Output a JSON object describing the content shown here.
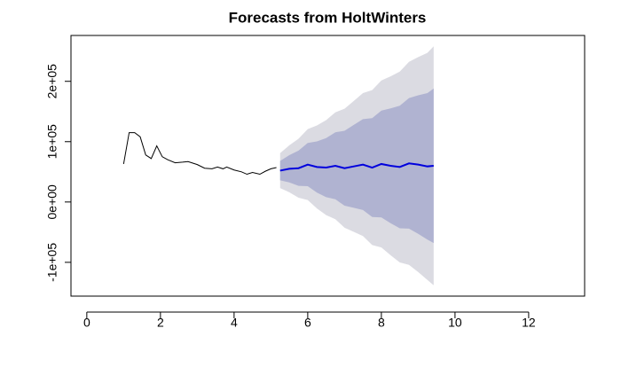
{
  "chart_data": {
    "type": "line",
    "title": "Forecasts from HoltWinters",
    "xlim": [
      -0.43,
      13.52
    ],
    "ylim": [
      -156000,
      276000
    ],
    "xticks": [
      0,
      2,
      4,
      6,
      8,
      10,
      12
    ],
    "yticks": [
      {
        "value": -100000,
        "label": "-1e+05"
      },
      {
        "value": 0,
        "label": "0e+00"
      },
      {
        "value": 100000,
        "label": "1e+05"
      },
      {
        "value": 200000,
        "label": "2e+05"
      }
    ],
    "series": [
      {
        "color": "#000000",
        "x": [
          1,
          1.15,
          1.3,
          1.45,
          1.6,
          1.75,
          1.9,
          2.05,
          2.2,
          2.4,
          2.6,
          2.75,
          3,
          3.2,
          3.4,
          3.55,
          3.7,
          3.8,
          4,
          4.2,
          4.35,
          4.5,
          4.7,
          4.85,
          5,
          5.15
        ],
        "values": [
          63000,
          115000,
          115000,
          108000,
          78000,
          72000,
          93000,
          75000,
          70000,
          65000,
          66000,
          67000,
          62000,
          56000,
          55000,
          58000,
          55000,
          58000,
          53000,
          50000,
          46000,
          49000,
          46000,
          51000,
          55000,
          57000
        ]
      },
      {
        "color": "#0000dd",
        "x": [
          5.25,
          5.5,
          5.75,
          6,
          6.25,
          6.5,
          6.75,
          7,
          7.25,
          7.5,
          7.75,
          8,
          8.25,
          8.5,
          8.75,
          9,
          9.25,
          9.42
        ],
        "values": [
          52000,
          55000,
          56000,
          62000,
          58000,
          57000,
          60000,
          56000,
          59000,
          62000,
          57000,
          63000,
          60000,
          58000,
          64000,
          62000,
          59000,
          60000
        ]
      }
    ],
    "bands": [
      {
        "color": "#dbdbe2",
        "lower": [
          23000,
          16100,
          7100,
          3200,
          -10800,
          -21700,
          -28600,
          -42600,
          -49500,
          -56500,
          -71400,
          -75400,
          -88300,
          -100200,
          -104200,
          -116100,
          -129100,
          -138000
        ],
        "upper": [
          81000,
          93900,
          104900,
          120800,
          126800,
          135700,
          148600,
          154600,
          167500,
          180500,
          185400,
          201400,
          208300,
          216200,
          232200,
          240100,
          247100,
          258000
        ]
      },
      {
        "color": "#b0b3d1",
        "lower": [
          36000,
          32400,
          26800,
          26200,
          15600,
          8100,
          4500,
          -6100,
          -9700,
          -13300,
          -24900,
          -25500,
          -35100,
          -43600,
          -44200,
          -52800,
          -62400,
          -68000
        ],
        "upper": [
          68000,
          77600,
          85200,
          97800,
          100400,
          105900,
          115500,
          118100,
          127700,
          137300,
          138900,
          151500,
          155100,
          159600,
          172200,
          176800,
          180400,
          188000
        ]
      }
    ]
  }
}
